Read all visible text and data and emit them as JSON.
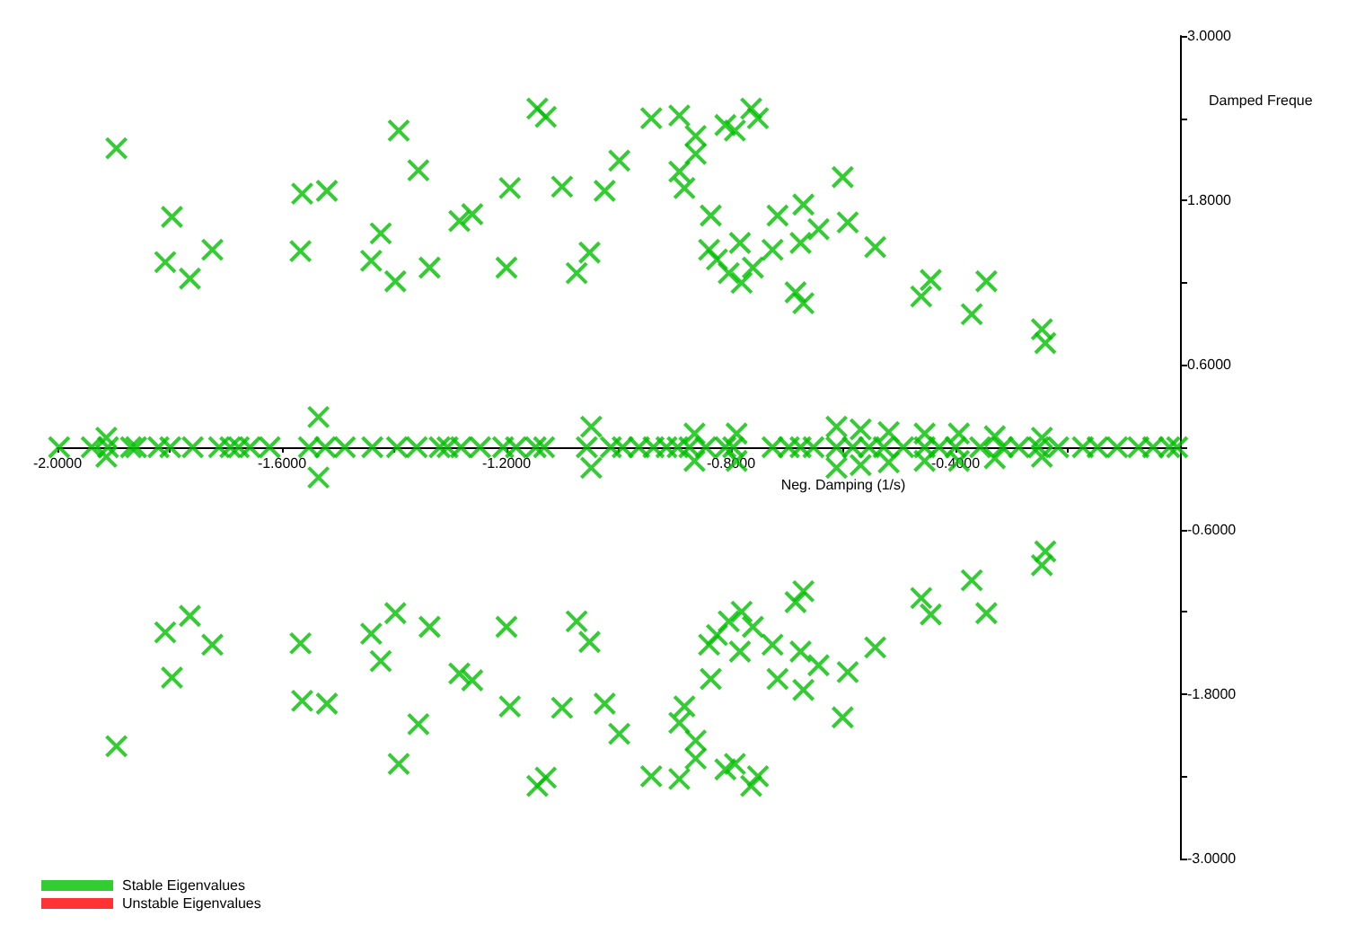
{
  "chart_data": {
    "type": "scatter",
    "xlabel": "Neg. Damping (1/s)",
    "ylabel": "Damped Freque",
    "marker": "cross",
    "legend": "bottom left",
    "xlim": [
      -2,
      0
    ],
    "ylim": [
      -3,
      3
    ],
    "xticks": [
      {
        "value": -2,
        "label": "-2.0000"
      },
      {
        "value": -1.8,
        "label": null
      },
      {
        "value": -1.6,
        "label": "-1.6000"
      },
      {
        "value": -1.4,
        "label": null
      },
      {
        "value": -1.2,
        "label": "-1.2000"
      },
      {
        "value": -1,
        "label": null
      },
      {
        "value": -0.8,
        "label": "-0.8000"
      },
      {
        "value": -0.6,
        "label": null
      },
      {
        "value": -0.4,
        "label": "-0.4000"
      },
      {
        "value": -0.2,
        "label": null
      }
    ],
    "yticks": [
      {
        "value": -3,
        "label": "-3.0000"
      },
      {
        "value": -2.4,
        "label": null
      },
      {
        "value": -1.8,
        "label": "-1.8000"
      },
      {
        "value": -1.2,
        "label": null
      },
      {
        "value": -0.6,
        "label": "-0.6000"
      },
      {
        "value": 0,
        "label": null
      },
      {
        "value": 0.6,
        "label": "0.6000"
      },
      {
        "value": 1.2,
        "label": null
      },
      {
        "value": 1.8,
        "label": "1.8000"
      },
      {
        "value": 2.4,
        "label": null
      },
      {
        "value": 3,
        "label": "3.0000"
      }
    ],
    "series": [
      {
        "name": "Stable Eigenvalues",
        "color": "#00c000",
        "x": [
          -1.895,
          -1.796,
          -1.808,
          -1.764,
          -1.724,
          -1.564,
          -1.52,
          -1.567,
          -1.392,
          -1.357,
          -1.424,
          -1.441,
          -1.398,
          -1.337,
          -1.284,
          -1.261,
          -1.194,
          -1.101,
          -1.145,
          -1.13,
          -1.025,
          -0.999,
          -1.2,
          -1.052,
          -1.075,
          -0.942,
          -0.892,
          -0.863,
          -0.863,
          -0.892,
          -0.883,
          -0.81,
          -0.793,
          -0.764,
          -0.752,
          -0.836,
          -0.717,
          -0.671,
          -0.644,
          -0.601,
          -0.592,
          -0.543,
          -0.839,
          -0.825,
          -0.804,
          -0.781,
          -0.784,
          -0.761,
          -0.726,
          -0.676,
          -0.685,
          -0.671,
          -0.461,
          -0.444,
          -0.371,
          -0.345,
          -0.246,
          -0.24,
          -1.895,
          -1.796,
          -1.808,
          -1.764,
          -1.724,
          -1.564,
          -1.52,
          -1.567,
          -1.392,
          -1.357,
          -1.424,
          -1.441,
          -1.398,
          -1.337,
          -1.284,
          -1.261,
          -1.194,
          -1.101,
          -1.145,
          -1.13,
          -1.025,
          -0.999,
          -1.2,
          -1.052,
          -1.075,
          -0.942,
          -0.892,
          -0.863,
          -0.863,
          -0.892,
          -0.883,
          -0.81,
          -0.793,
          -0.764,
          -0.752,
          -0.836,
          -0.717,
          -0.671,
          -0.644,
          -0.601,
          -0.592,
          -0.543,
          -0.839,
          -0.825,
          -0.804,
          -0.781,
          -0.784,
          -0.761,
          -0.726,
          -0.676,
          -0.685,
          -0.671,
          -0.461,
          -0.444,
          -0.371,
          -0.345,
          -0.246,
          -0.24,
          -1.997,
          -1.939,
          -1.91,
          -1.869,
          -1.86,
          -1.82,
          -1.799,
          -1.759,
          -1.712,
          -1.692,
          -1.677,
          -1.657,
          -1.622,
          -1.552,
          -1.523,
          -1.488,
          -1.439,
          -1.395,
          -1.36,
          -1.319,
          -1.305,
          -1.281,
          -1.247,
          -1.206,
          -1.183,
          -1.148,
          -1.133,
          -1.057,
          -1.014,
          -0.993,
          -0.964,
          -0.938,
          -0.915,
          -0.895,
          -0.874,
          -0.845,
          -0.81,
          -0.796,
          -0.726,
          -0.697,
          -0.676,
          -0.653,
          -0.612,
          -0.583,
          -0.554,
          -0.528,
          -0.493,
          -0.455,
          -0.429,
          -0.4,
          -0.356,
          -0.316,
          -0.287,
          -0.252,
          -0.217,
          -0.173,
          -0.147,
          -0.112,
          -0.074,
          -0.048,
          -0.019,
          -0.005,
          -1.913,
          -1.913,
          -1.535,
          -1.535,
          -1.049,
          -1.049,
          -0.865,
          -0.865,
          -0.79,
          -0.79,
          -0.612,
          -0.612,
          -0.569,
          -0.569,
          -0.519,
          -0.519,
          -0.455,
          -0.455,
          -0.394,
          -0.394,
          -0.33,
          -0.33,
          -0.246,
          -0.246
        ],
        "values": [
          2.18,
          1.68,
          1.35,
          1.23,
          1.44,
          1.85,
          1.87,
          1.43,
          2.31,
          2.02,
          1.56,
          1.36,
          1.21,
          1.31,
          1.65,
          1.7,
          1.89,
          1.9,
          2.47,
          2.41,
          1.87,
          2.09,
          1.31,
          1.42,
          1.27,
          2.4,
          2.42,
          2.27,
          2.14,
          2.01,
          1.89,
          2.35,
          2.31,
          2.47,
          2.4,
          1.69,
          1.69,
          1.77,
          1.59,
          1.97,
          1.64,
          1.46,
          1.44,
          1.37,
          1.27,
          1.2,
          1.49,
          1.31,
          1.44,
          1.49,
          1.13,
          1.05,
          1.1,
          1.22,
          0.97,
          1.21,
          0.86,
          0.76,
          -2.18,
          -1.68,
          -1.35,
          -1.23,
          -1.44,
          -1.85,
          -1.87,
          -1.43,
          -2.31,
          -2.02,
          -1.56,
          -1.36,
          -1.21,
          -1.31,
          -1.65,
          -1.7,
          -1.89,
          -1.9,
          -2.47,
          -2.41,
          -1.87,
          -2.09,
          -1.31,
          -1.42,
          -1.27,
          -2.4,
          -2.42,
          -2.27,
          -2.14,
          -2.01,
          -1.89,
          -2.35,
          -2.31,
          -2.47,
          -2.4,
          -1.69,
          -1.69,
          -1.77,
          -1.59,
          -1.97,
          -1.64,
          -1.46,
          -1.44,
          -1.37,
          -1.27,
          -1.2,
          -1.49,
          -1.31,
          -1.44,
          -1.49,
          -1.13,
          -1.05,
          -1.1,
          -1.22,
          -0.97,
          -1.21,
          -0.86,
          -0.76,
          0,
          0,
          0,
          0,
          0,
          0,
          0,
          0,
          0,
          0,
          0,
          0,
          0,
          0,
          0,
          0,
          0,
          0,
          0,
          0,
          0,
          0,
          0,
          0,
          0,
          0,
          0,
          0,
          0,
          0,
          0,
          0,
          0,
          0,
          0,
          0,
          0,
          0,
          0,
          0,
          0,
          0,
          0,
          0,
          0,
          0,
          0,
          0,
          0,
          0,
          0,
          0,
          0,
          0,
          0,
          0,
          0,
          0,
          0,
          0,
          0,
          0,
          0.07,
          -0.07,
          0.22,
          -0.22,
          0.15,
          -0.15,
          0.1,
          -0.1,
          0.1,
          -0.1,
          0.15,
          -0.15,
          0.13,
          -0.13,
          0.11,
          -0.11,
          0.1,
          -0.1,
          0.1,
          -0.1,
          0.08,
          -0.08,
          0.07,
          -0.07
        ]
      },
      {
        "name": "Unstable Eigenvalues",
        "color": "#ff0000"
      }
    ]
  }
}
